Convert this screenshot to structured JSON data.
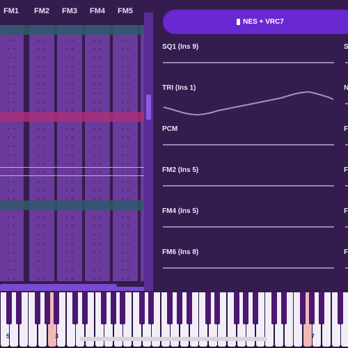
{
  "tracker": {
    "channels": [
      {
        "label": "FM1"
      },
      {
        "label": "FM2"
      },
      {
        "label": "FM3"
      },
      {
        "label": "FM4"
      },
      {
        "label": "FM5"
      }
    ],
    "empty_cell": "- -",
    "colors": {
      "column": "#6a3a9c",
      "row_highlight_teal": "#2e5a6a",
      "row_highlight_magenta": "#a8307a",
      "playhead": "#8bd6a6"
    }
  },
  "chip": {
    "label": "NES + VRC7",
    "icon": "chip-icon"
  },
  "oscilloscopes": [
    {
      "label": "SQ1 (Ins 9)"
    },
    {
      "label": "TRI (Ins 1)"
    },
    {
      "label": "PCM"
    },
    {
      "label": "FM2 (Ins 5)"
    },
    {
      "label": "FM4 (Ins 5)"
    },
    {
      "label": "FM6 (Ins 8)"
    }
  ],
  "oscilloscopes_right_edge": [
    "S",
    "N",
    "F",
    "F",
    "F",
    "F"
  ],
  "piano": {
    "octave_labels": [
      "5",
      "3",
      "7"
    ],
    "pressed_color": "#f0b8b8"
  }
}
